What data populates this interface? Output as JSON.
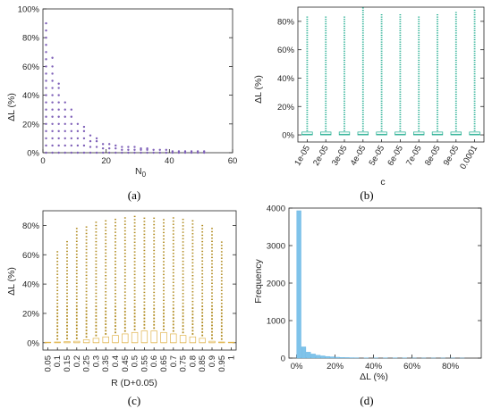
{
  "colors": {
    "a_points": "#7e5fb8",
    "b_points": "#1aaa8c",
    "b_box": "#1aaa8c",
    "c_points": "#b08a1e",
    "c_box": "#e0b44c",
    "d_bar": "#7fc3ea",
    "axis": "#262626"
  },
  "chart_data": [
    {
      "panel_label": "(a)",
      "type": "scatter",
      "xlabel_main": "N",
      "xlabel_sub": "0",
      "ylabel": "ΔL (%)",
      "xlim": [
        0,
        60
      ],
      "ylim": [
        0,
        100
      ],
      "xticks": [
        "0",
        "20",
        "40",
        "60"
      ],
      "yticks": [
        "0%",
        "20%",
        "40%",
        "60%",
        "80%",
        "100%"
      ],
      "series": [
        {
          "x": 1,
          "y_values": [
            0,
            5,
            10,
            15,
            20,
            25,
            30,
            35,
            40,
            45,
            50,
            55,
            60,
            65,
            70,
            75,
            80,
            85,
            90
          ]
        },
        {
          "x": 3,
          "y_values": [
            0,
            5,
            10,
            15,
            20,
            25,
            30,
            35,
            40,
            45,
            50,
            55,
            60,
            66
          ]
        },
        {
          "x": 5,
          "y_values": [
            0,
            5,
            10,
            15,
            20,
            25,
            30,
            35,
            40,
            45,
            48
          ]
        },
        {
          "x": 7,
          "y_values": [
            0,
            5,
            10,
            15,
            20,
            25,
            30,
            35
          ]
        },
        {
          "x": 9,
          "y_values": [
            0,
            5,
            10,
            15,
            20,
            25,
            30
          ]
        },
        {
          "x": 11,
          "y_values": [
            0,
            5,
            10,
            15,
            20
          ]
        },
        {
          "x": 13,
          "y_values": [
            0,
            5,
            10,
            15,
            18
          ]
        },
        {
          "x": 15,
          "y_values": [
            0,
            4,
            8,
            12
          ]
        },
        {
          "x": 17,
          "y_values": [
            0,
            4,
            8,
            10
          ]
        },
        {
          "x": 19,
          "y_values": [
            0,
            3,
            6
          ]
        },
        {
          "x": 21,
          "y_values": [
            0,
            3,
            6
          ]
        },
        {
          "x": 23,
          "y_values": [
            0,
            3,
            5
          ]
        },
        {
          "x": 25,
          "y_values": [
            0,
            2,
            4
          ]
        },
        {
          "x": 27,
          "y_values": [
            0,
            2,
            4
          ]
        },
        {
          "x": 29,
          "y_values": [
            0,
            2,
            4
          ]
        },
        {
          "x": 31,
          "y_values": [
            0,
            2,
            3
          ]
        },
        {
          "x": 33,
          "y_values": [
            0,
            2,
            3
          ]
        },
        {
          "x": 35,
          "y_values": [
            0,
            2
          ]
        },
        {
          "x": 37,
          "y_values": [
            0,
            2
          ]
        },
        {
          "x": 39,
          "y_values": [
            0,
            2
          ]
        },
        {
          "x": 41,
          "y_values": [
            0,
            1
          ]
        },
        {
          "x": 43,
          "y_values": [
            0,
            1
          ]
        },
        {
          "x": 45,
          "y_values": [
            0,
            1
          ]
        },
        {
          "x": 47,
          "y_values": [
            0,
            1
          ]
        },
        {
          "x": 49,
          "y_values": [
            0,
            1
          ]
        },
        {
          "x": 51,
          "y_values": [
            0,
            1
          ]
        }
      ]
    },
    {
      "panel_label": "(b)",
      "type": "box",
      "xlabel": "c",
      "ylabel": "ΔL (%)",
      "ylim": [
        -5,
        90
      ],
      "yticks": [
        "0%",
        "20%",
        "40%",
        "60%",
        "80%"
      ],
      "categories": [
        "1e-05",
        "2e-05",
        "3e-05",
        "4e-05",
        "5e-05",
        "6e-05",
        "7e-05",
        "8e-05",
        "9e-05",
        "0.0001"
      ],
      "box": {
        "q1": 0,
        "q3": 2,
        "median": 0.5
      },
      "max_outlier": [
        84,
        83,
        84,
        90,
        85,
        85,
        84,
        85,
        87,
        88
      ]
    },
    {
      "panel_label": "(c)",
      "type": "box",
      "xlabel": "R (D+0.05)",
      "ylabel": "ΔL (%)",
      "ylim": [
        -5,
        90
      ],
      "yticks": [
        "0%",
        "20%",
        "40%",
        "60%",
        "80%"
      ],
      "categories": [
        "0.05",
        "0.1",
        "0.15",
        "0.2",
        "0.25",
        "0.3",
        "0.35",
        "0.4",
        "0.45",
        "0.5",
        "0.55",
        "0.6",
        "0.65",
        "0.7",
        "0.75",
        "0.8",
        "0.85",
        "0.9",
        "0.95",
        "1"
      ],
      "q3": [
        0,
        0.5,
        0.8,
        1,
        2,
        3,
        4,
        5,
        6,
        7,
        8,
        8,
        7,
        6,
        5,
        4,
        3,
        1,
        0.5,
        0
      ],
      "max_outlier": [
        0,
        63,
        70,
        78,
        80,
        83,
        85,
        85,
        87,
        87,
        87,
        87,
        86,
        86,
        85,
        84,
        82,
        80,
        70,
        2
      ]
    },
    {
      "panel_label": "(d)",
      "type": "bar",
      "xlabel": "ΔL (%)",
      "ylabel": "Frequency",
      "xlim": [
        -4,
        96
      ],
      "ylim": [
        0,
        4000
      ],
      "xticks": [
        "0%",
        "20%",
        "40%",
        "60%",
        "80%"
      ],
      "yticks": [
        "0",
        "1000",
        "2000",
        "3000",
        "4000"
      ],
      "bin_width": 2.5,
      "bin_starts": [
        0,
        2.5,
        5,
        7.5,
        10,
        12.5,
        15,
        17.5,
        20,
        22.5,
        25,
        27.5,
        30,
        35,
        40,
        45,
        50,
        55,
        60,
        65,
        70,
        75,
        80,
        85
      ],
      "counts": [
        3930,
        300,
        160,
        110,
        80,
        60,
        45,
        35,
        25,
        20,
        15,
        12,
        10,
        8,
        6,
        5,
        4,
        4,
        3,
        3,
        3,
        3,
        3,
        2
      ]
    }
  ]
}
